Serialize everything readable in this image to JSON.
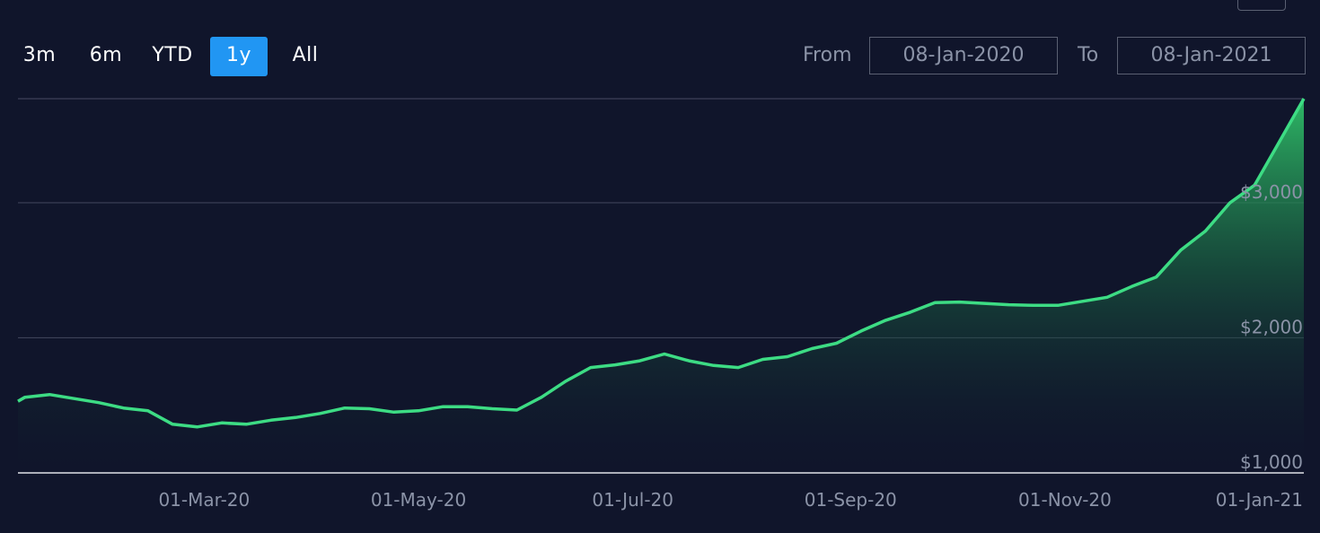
{
  "range_selector": {
    "buttons": [
      {
        "label": "3m",
        "active": false
      },
      {
        "label": "6m",
        "active": false
      },
      {
        "label": "YTD",
        "active": false
      },
      {
        "label": "1y",
        "active": true
      },
      {
        "label": "All",
        "active": false
      }
    ]
  },
  "date_range": {
    "from_label": "From",
    "from_value": "08-Jan-2020",
    "to_label": "To",
    "to_value": "08-Jan-2021"
  },
  "colors": {
    "background": "#10152b",
    "line": "#3ddc84",
    "accent": "#2196f3"
  },
  "chart_data": {
    "type": "area",
    "title": "",
    "xlabel": "",
    "ylabel": "",
    "x_ticks": [
      "01-Mar-20",
      "01-May-20",
      "01-Jul-20",
      "01-Sep-20",
      "01-Nov-20",
      "01-Jan-21"
    ],
    "y_ticks": [
      "$1,000",
      "$2,000",
      "$3,000"
    ],
    "xlim": [
      "2020-01-08",
      "2021-01-08"
    ],
    "ylim": [
      1000,
      3770
    ],
    "grid": true,
    "series": [
      {
        "x": [
          "2020-01-08",
          "2020-01-10",
          "2020-01-17",
          "2020-01-24",
          "2020-01-31",
          "2020-02-07",
          "2020-02-14",
          "2020-02-21",
          "2020-02-28",
          "2020-03-06",
          "2020-03-13",
          "2020-03-20",
          "2020-03-27",
          "2020-04-03",
          "2020-04-10",
          "2020-04-17",
          "2020-04-24",
          "2020-05-01",
          "2020-05-08",
          "2020-05-15",
          "2020-05-22",
          "2020-05-29",
          "2020-06-05",
          "2020-06-12",
          "2020-06-19",
          "2020-06-26",
          "2020-07-03",
          "2020-07-10",
          "2020-07-17",
          "2020-07-24",
          "2020-07-31",
          "2020-08-07",
          "2020-08-14",
          "2020-08-21",
          "2020-08-28",
          "2020-09-04",
          "2020-09-11",
          "2020-09-18",
          "2020-09-25",
          "2020-10-02",
          "2020-10-09",
          "2020-10-16",
          "2020-10-23",
          "2020-10-30",
          "2020-11-06",
          "2020-11-13",
          "2020-11-20",
          "2020-11-27",
          "2020-12-04",
          "2020-12-11",
          "2020-12-18",
          "2020-12-25",
          "2021-01-01",
          "2021-01-08"
        ],
        "values": [
          1530,
          1560,
          1580,
          1550,
          1520,
          1480,
          1460,
          1360,
          1340,
          1370,
          1360,
          1390,
          1410,
          1440,
          1480,
          1475,
          1450,
          1460,
          1490,
          1490,
          1475,
          1465,
          1560,
          1680,
          1780,
          1800,
          1830,
          1880,
          1830,
          1795,
          1780,
          1840,
          1860,
          1920,
          1960,
          2050,
          2130,
          2190,
          2260,
          2265,
          2255,
          2245,
          2240,
          2240,
          2270,
          2300,
          2380,
          2450,
          2650,
          2790,
          3000,
          3130,
          3450,
          3770
        ]
      }
    ]
  }
}
